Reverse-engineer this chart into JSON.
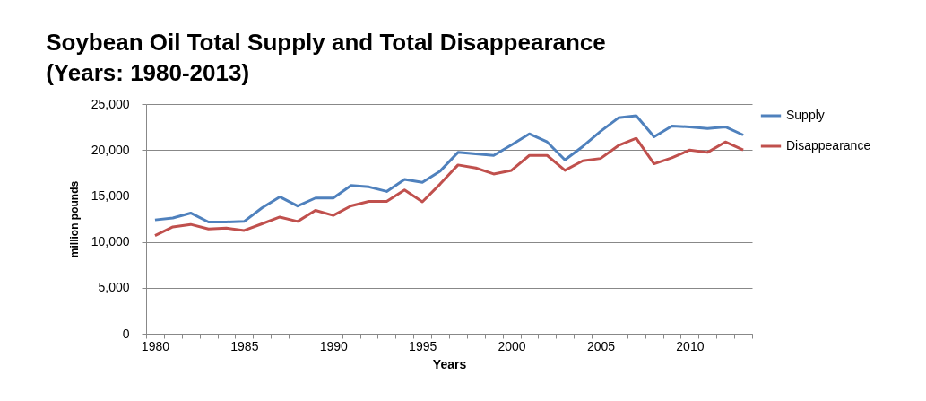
{
  "chart_data": {
    "type": "line",
    "title": "Soybean Oil Total Supply and Total Disappearance\n(Years: 1980-2013)",
    "xlabel": "Years",
    "ylabel": "million pounds",
    "categories": [
      "1980",
      null,
      null,
      null,
      null,
      "1985",
      null,
      null,
      null,
      null,
      "1990",
      null,
      null,
      null,
      null,
      "1995",
      null,
      null,
      null,
      null,
      "2000",
      null,
      null,
      null,
      null,
      "2005",
      null,
      null,
      null,
      null,
      "2010",
      null,
      null,
      null
    ],
    "series": [
      {
        "name": "Supply",
        "color": "#4f81bd",
        "values": [
          12390,
          12600,
          13140,
          12160,
          12160,
          12220,
          13700,
          14900,
          13900,
          14770,
          14770,
          16140,
          15980,
          15490,
          16800,
          16470,
          17710,
          19740,
          19580,
          19410,
          20560,
          21760,
          20880,
          18920,
          20390,
          22030,
          23500,
          23730,
          21440,
          22610,
          22520,
          22350,
          22520,
          21630
        ]
      },
      {
        "name": "Disappearance",
        "color": "#c0504d",
        "values": [
          10690,
          11630,
          11900,
          11400,
          11500,
          11240,
          11960,
          12700,
          12220,
          13430,
          12880,
          13920,
          14410,
          14410,
          15650,
          14350,
          16300,
          18370,
          18040,
          17390,
          17780,
          19410,
          19410,
          17780,
          18820,
          19080,
          20490,
          21270,
          18500,
          19150,
          20000,
          19740,
          20880,
          20000
        ]
      }
    ],
    "ylim": [
      0,
      25000
    ],
    "yticks": [
      {
        "value": 0,
        "label": "0"
      },
      {
        "value": 5000,
        "label": "5,000"
      },
      {
        "value": 10000,
        "label": "10,000"
      },
      {
        "value": 15000,
        "label": "15,000"
      },
      {
        "value": 20000,
        "label": "20,000"
      },
      {
        "value": 25000,
        "label": "25,000"
      }
    ],
    "grid": "y",
    "legend": "right",
    "marker": "none"
  }
}
